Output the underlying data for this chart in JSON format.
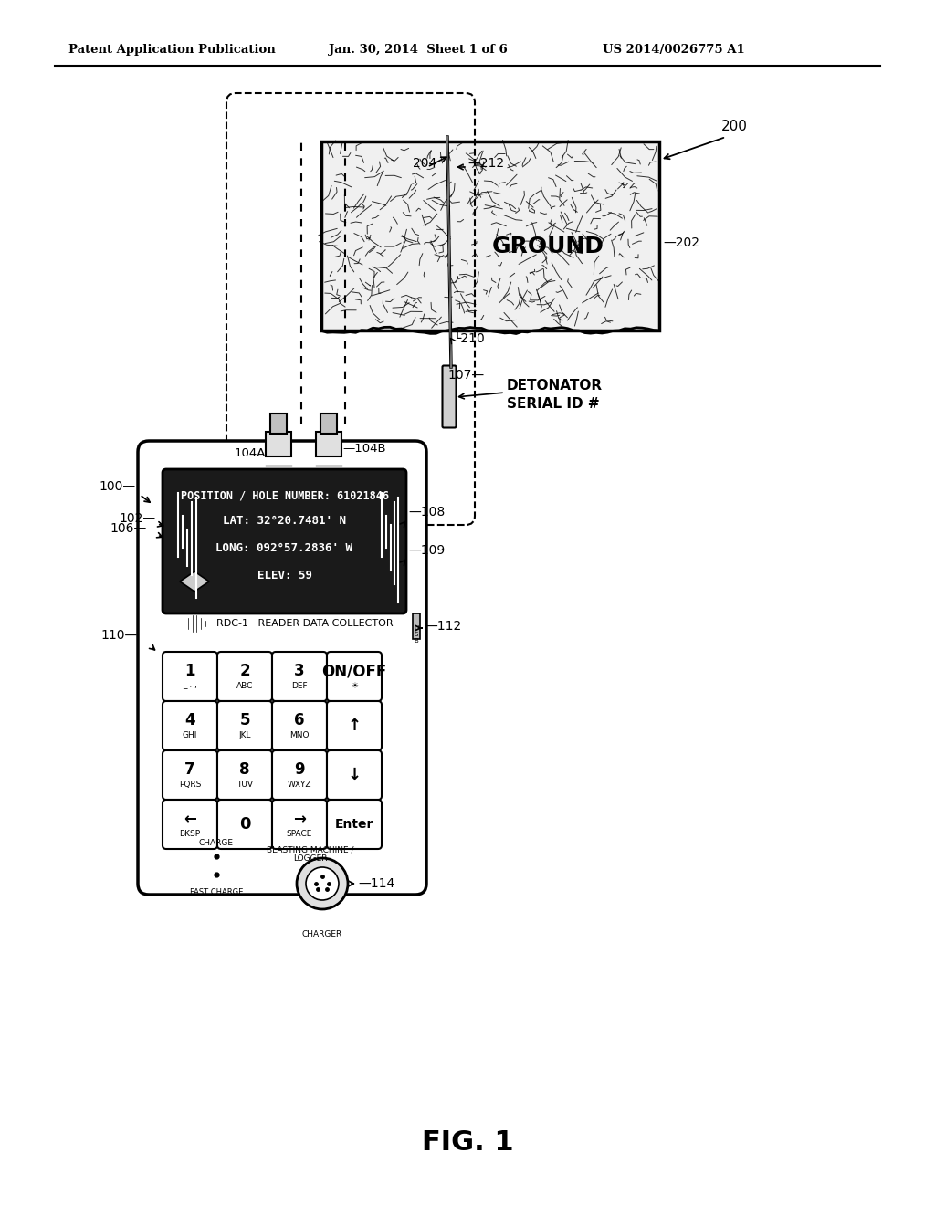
{
  "bg_color": "#ffffff",
  "header_left": "Patent Application Publication",
  "header_mid": "Jan. 30, 2014  Sheet 1 of 6",
  "header_right": "US 2014/0026775 A1",
  "footer_label": "FIG. 1",
  "display_line1": "POSITION / HOLE NUMBER: 61021846",
  "display_line2": "LAT: 32°20.7481' N",
  "display_line3": "LONG: 092°57.2836' W",
  "display_line4": "ELEV: 59",
  "label_200": "200",
  "label_212": "—212",
  "label_204": "204",
  "label_202": "—202",
  "label_ground": "GROUND",
  "label_210": "└210",
  "label_107": "107—",
  "label_detonator": "DETONATOR\nSERIAL ID #",
  "label_100": "100—",
  "label_104A": "104A",
  "label_104B": "—104B",
  "label_102": "102—",
  "label_106": "106—",
  "label_108": "—108",
  "label_109": "—109",
  "label_110": "110—",
  "label_112": "—112",
  "label_114": "—114",
  "rdc_text": "RDC-1   READER DATA COLLECTOR",
  "keys": [
    [
      "1\n_ . ,",
      "2\nABC",
      "3\nDEF",
      "ON/OFF\n☀"
    ],
    [
      "4\nGHI",
      "5\nJKL",
      "6\nMNO",
      "↑"
    ],
    [
      "7\nPQRS",
      "8\nTUV",
      "9\nWXYZ",
      "↓"
    ],
    [
      "←\nBKSP",
      "0",
      "→\nSPACE",
      "Enter"
    ]
  ]
}
